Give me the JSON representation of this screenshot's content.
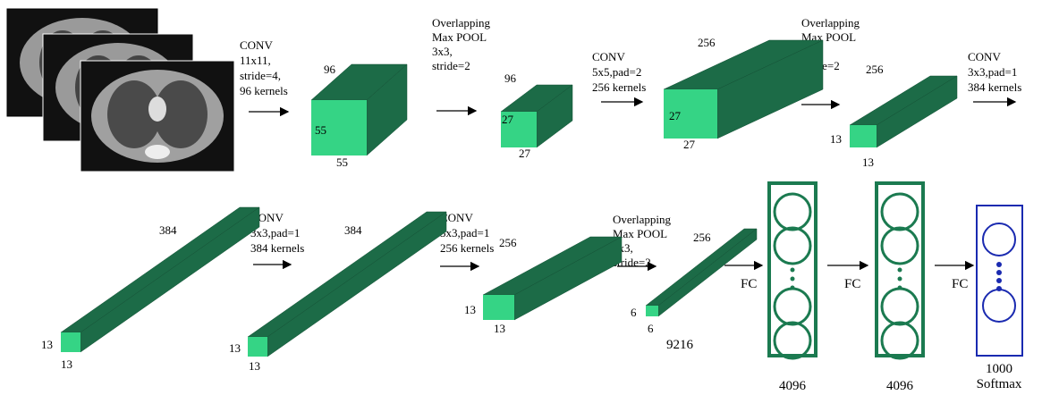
{
  "operations": [
    {
      "lines": [
        "CONV",
        "11x11,",
        "stride=4,",
        "96 kernels"
      ]
    },
    {
      "lines": [
        "Overlapping",
        "Max POOL",
        "3x3,",
        "stride=2"
      ]
    },
    {
      "lines": [
        "CONV",
        "5x5,pad=2",
        "256 kernels"
      ]
    },
    {
      "lines": [
        "Overlapping",
        "Max POOL",
        "3x3,",
        "stride=2"
      ]
    },
    {
      "lines": [
        "CONV",
        "3x3,pad=1",
        "384 kernels"
      ]
    },
    {
      "lines": [
        "CONV",
        "3x3,pad=1",
        "384 kernels"
      ]
    },
    {
      "lines": [
        "CONV",
        "3x3,pad=1",
        "256 kernels"
      ]
    },
    {
      "lines": [
        "Overlapping",
        "Max POOL",
        "3x3,",
        "stride=2"
      ]
    }
  ],
  "blocks": [
    {
      "depth": "96",
      "height": "55",
      "width": "55"
    },
    {
      "depth": "96",
      "height": "27",
      "width": "27"
    },
    {
      "depth": "256",
      "height": "27",
      "width": "27"
    },
    {
      "depth": "256",
      "height": "13",
      "width": "13"
    },
    {
      "depth": "384",
      "height": "13",
      "width": "13"
    },
    {
      "depth": "384",
      "height": "13",
      "width": "13"
    },
    {
      "depth": "256",
      "height": "13",
      "width": "13"
    },
    {
      "depth": "256",
      "height": "6",
      "width": "6"
    }
  ],
  "flatten": "9216",
  "fc_arrows": [
    "FC",
    "FC",
    "FC"
  ],
  "fc_layers": [
    {
      "label": "4096"
    },
    {
      "label": "4096"
    },
    {
      "label": "1000",
      "sublabel": "Softmax"
    }
  ]
}
